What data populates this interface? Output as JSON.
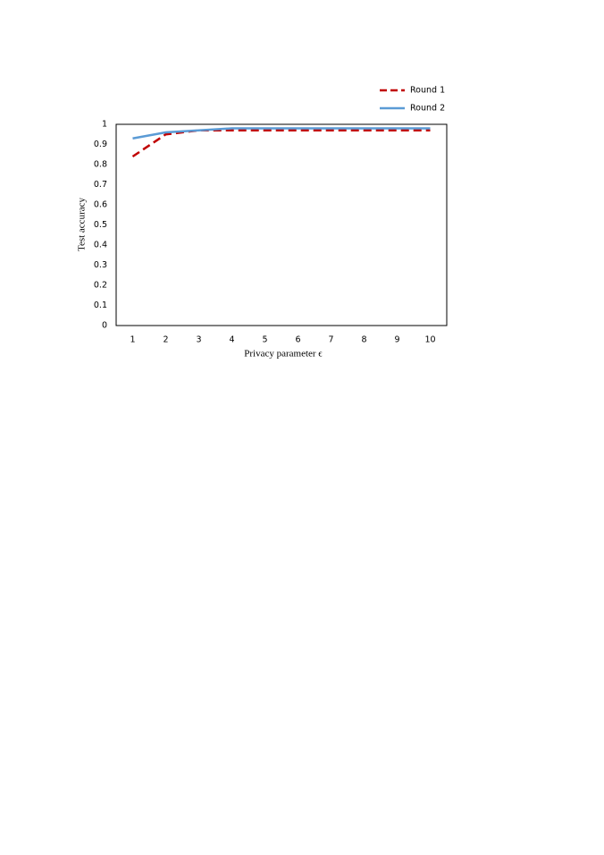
{
  "chart_data": {
    "type": "line",
    "x_label": "Privacy parameter ϵ",
    "y_label": "Test accuracy",
    "categories": [
      "1",
      "2",
      "3",
      "4",
      "5",
      "6",
      "7",
      "8",
      "9",
      "10"
    ],
    "series": [
      {
        "name": "Round 1",
        "color": "#c00000",
        "dashed": true,
        "values": [
          0.84,
          0.95,
          0.97,
          0.97,
          0.97,
          0.97,
          0.97,
          0.97,
          0.97,
          0.97
        ]
      },
      {
        "name": "Round 2",
        "color": "#5b9bd5",
        "dashed": false,
        "values": [
          0.93,
          0.96,
          0.97,
          0.98,
          0.98,
          0.98,
          0.98,
          0.98,
          0.98,
          0.98
        ]
      }
    ],
    "ylim": [
      0,
      1
    ],
    "yticks": [
      0,
      0.1,
      0.2,
      0.3,
      0.4,
      0.5,
      0.6,
      0.7,
      0.8,
      0.9,
      1
    ],
    "grid": false,
    "legend": "top-right"
  }
}
